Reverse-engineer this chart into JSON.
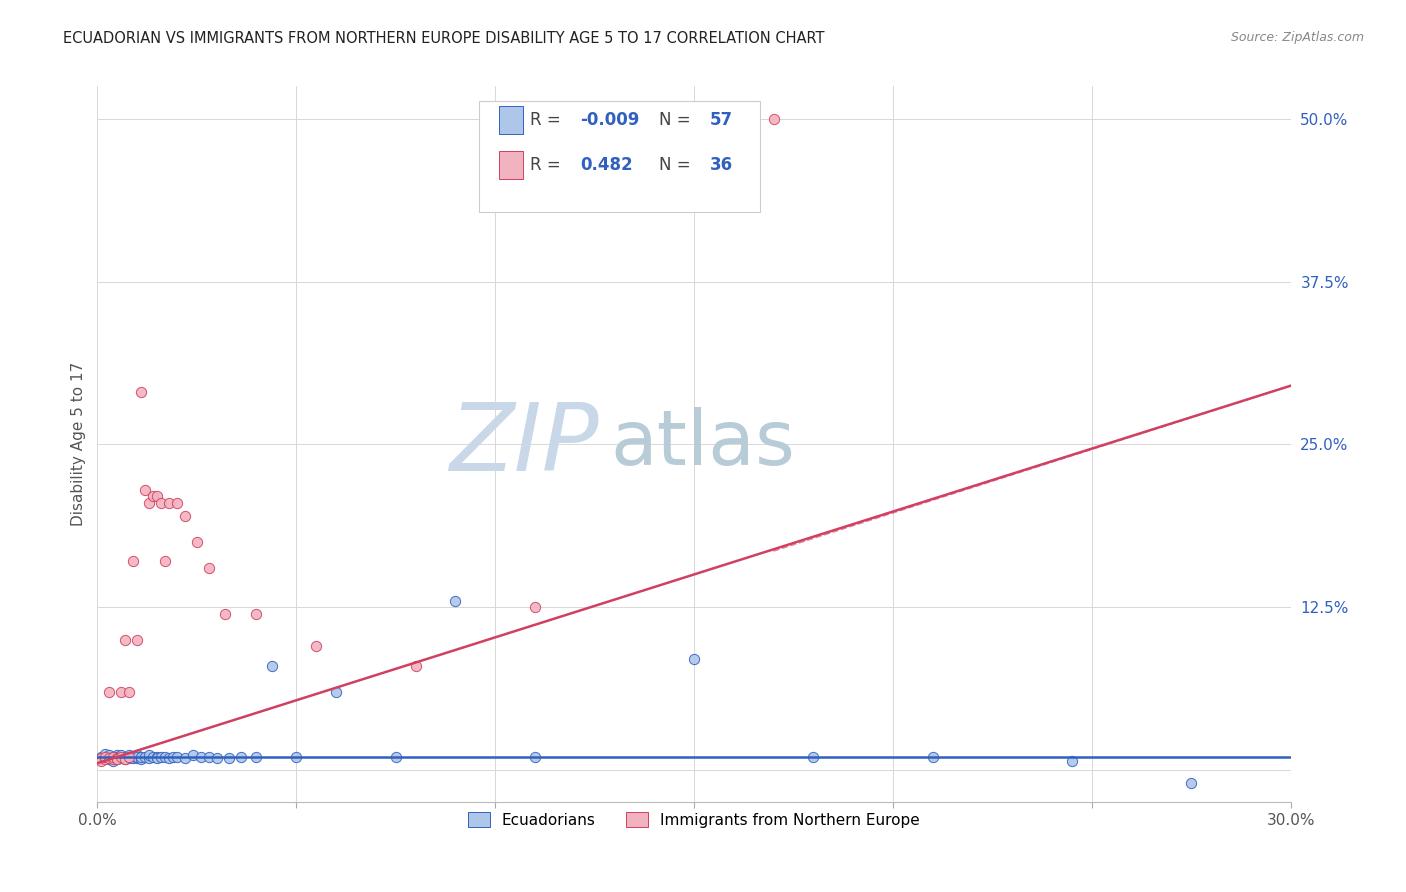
{
  "title": "ECUADORIAN VS IMMIGRANTS FROM NORTHERN EUROPE DISABILITY AGE 5 TO 17 CORRELATION CHART",
  "source": "Source: ZipAtlas.com",
  "ylabel": "Disability Age 5 to 17",
  "x_min": 0.0,
  "x_max": 0.3,
  "y_min": -0.025,
  "y_max": 0.525,
  "x_ticks": [
    0.0,
    0.05,
    0.1,
    0.15,
    0.2,
    0.25,
    0.3
  ],
  "x_tick_labels": [
    "0.0%",
    "",
    "",
    "",
    "",
    "",
    "30.0%"
  ],
  "y_ticks_right": [
    0.0,
    0.125,
    0.25,
    0.375,
    0.5
  ],
  "y_tick_labels_right": [
    "",
    "12.5%",
    "25.0%",
    "37.5%",
    "50.0%"
  ],
  "blue_color": "#aec6e8",
  "pink_color": "#f2b3c0",
  "trend_blue_color": "#3060c0",
  "trend_pink_color": "#d04060",
  "R_blue": -0.009,
  "N_blue": 57,
  "R_pink": 0.482,
  "N_pink": 36,
  "blue_scatter_x": [
    0.001,
    0.001,
    0.002,
    0.002,
    0.003,
    0.003,
    0.003,
    0.004,
    0.004,
    0.004,
    0.005,
    0.005,
    0.005,
    0.006,
    0.006,
    0.007,
    0.007,
    0.008,
    0.008,
    0.008,
    0.009,
    0.009,
    0.01,
    0.01,
    0.01,
    0.011,
    0.011,
    0.012,
    0.013,
    0.013,
    0.014,
    0.015,
    0.015,
    0.016,
    0.017,
    0.018,
    0.019,
    0.02,
    0.022,
    0.024,
    0.026,
    0.028,
    0.03,
    0.033,
    0.036,
    0.04,
    0.044,
    0.05,
    0.06,
    0.075,
    0.09,
    0.11,
    0.15,
    0.18,
    0.21,
    0.245,
    0.275
  ],
  "blue_scatter_y": [
    0.01,
    0.008,
    0.009,
    0.012,
    0.01,
    0.008,
    0.011,
    0.009,
    0.01,
    0.007,
    0.011,
    0.01,
    0.008,
    0.009,
    0.011,
    0.01,
    0.008,
    0.009,
    0.011,
    0.01,
    0.01,
    0.009,
    0.009,
    0.011,
    0.01,
    0.008,
    0.01,
    0.01,
    0.009,
    0.011,
    0.01,
    0.01,
    0.009,
    0.01,
    0.01,
    0.009,
    0.01,
    0.01,
    0.009,
    0.011,
    0.01,
    0.01,
    0.009,
    0.009,
    0.01,
    0.01,
    0.08,
    0.01,
    0.06,
    0.01,
    0.13,
    0.01,
    0.085,
    0.01,
    0.01,
    0.007,
    -0.01
  ],
  "pink_scatter_x": [
    0.001,
    0.001,
    0.002,
    0.002,
    0.003,
    0.003,
    0.004,
    0.004,
    0.005,
    0.005,
    0.006,
    0.006,
    0.007,
    0.007,
    0.008,
    0.008,
    0.009,
    0.01,
    0.011,
    0.012,
    0.013,
    0.014,
    0.015,
    0.016,
    0.017,
    0.018,
    0.02,
    0.022,
    0.025,
    0.028,
    0.032,
    0.04,
    0.055,
    0.08,
    0.11,
    0.17
  ],
  "pink_scatter_y": [
    0.009,
    0.007,
    0.008,
    0.01,
    0.009,
    0.06,
    0.008,
    0.01,
    0.009,
    0.008,
    0.06,
    0.01,
    0.1,
    0.008,
    0.06,
    0.01,
    0.16,
    0.1,
    0.29,
    0.215,
    0.205,
    0.21,
    0.21,
    0.205,
    0.16,
    0.205,
    0.205,
    0.195,
    0.175,
    0.155,
    0.12,
    0.12,
    0.095,
    0.08,
    0.125,
    0.5
  ],
  "grid_color": "#d8d8d8",
  "background_color": "#ffffff",
  "title_fontsize": 10.5,
  "axis_label_fontsize": 11,
  "tick_fontsize": 11,
  "legend_fontsize": 12,
  "watermark_zip": "ZIP",
  "watermark_atlas": "atlas",
  "watermark_color_zip": "#c8d8e8",
  "watermark_color_atlas": "#b8ccd8",
  "watermark_fontsize_zip": 68,
  "watermark_fontsize_atlas": 55
}
